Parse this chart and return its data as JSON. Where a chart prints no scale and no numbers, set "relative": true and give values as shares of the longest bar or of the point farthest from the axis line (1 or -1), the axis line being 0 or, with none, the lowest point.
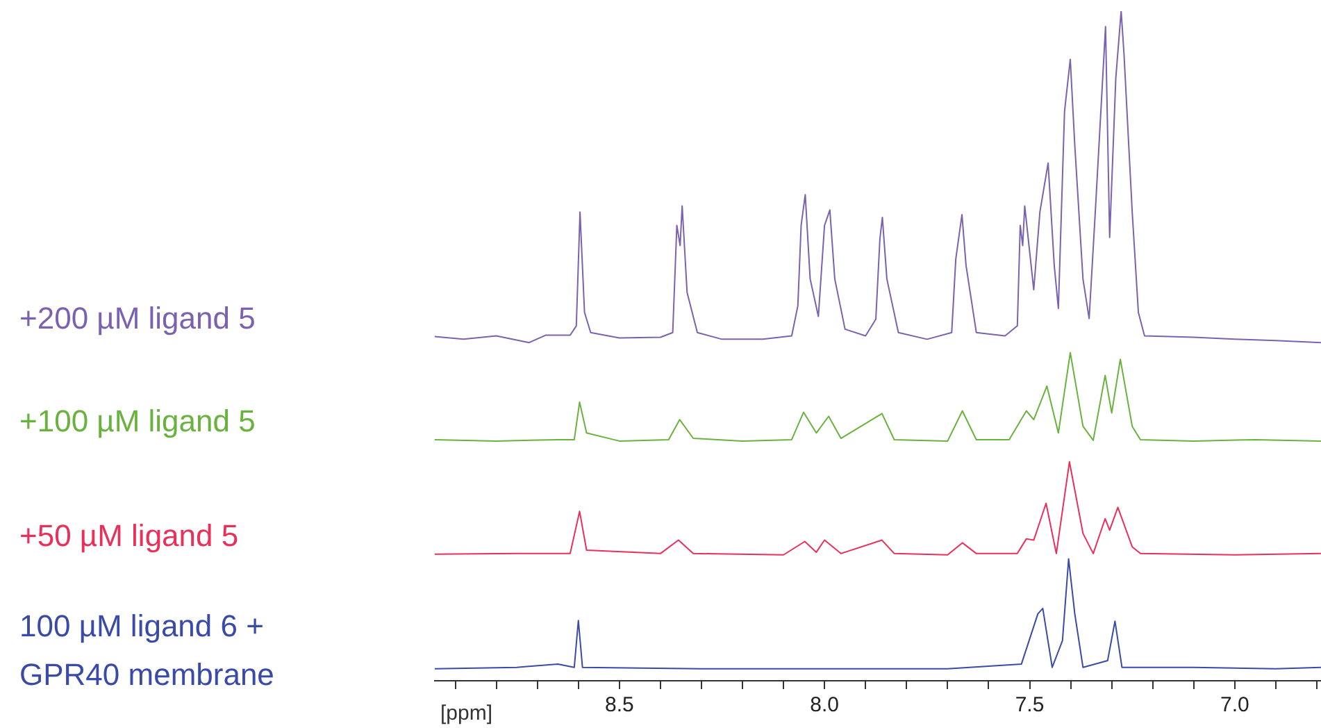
{
  "chart_data": {
    "type": "line",
    "relative": true,
    "xlabel": "[ppm]",
    "xlim": [
      8.95,
      6.79
    ],
    "tick_labels": "x",
    "xticks": [
      {
        "value": 8.9,
        "label": null
      },
      {
        "value": 8.8,
        "label": null
      },
      {
        "value": 8.7,
        "label": null
      },
      {
        "value": 8.6,
        "label": null
      },
      8.5,
      {
        "value": 8.4,
        "label": null
      },
      {
        "value": 8.3,
        "label": null
      },
      {
        "value": 8.2,
        "label": null
      },
      {
        "value": 8.1,
        "label": null
      },
      {
        "value": 8,
        "label": "8.0"
      },
      {
        "value": 7.9,
        "label": null
      },
      {
        "value": 7.8,
        "label": null
      },
      {
        "value": 7.7,
        "label": null
      },
      {
        "value": 7.6,
        "label": null
      },
      7.5,
      {
        "value": 7.4,
        "label": null
      },
      {
        "value": 7.3,
        "label": null
      },
      {
        "value": 7.2,
        "label": null
      },
      {
        "value": 7.1,
        "label": null
      },
      {
        "value": 7,
        "label": "7.0"
      },
      {
        "value": 6.9,
        "label": null
      },
      {
        "value": 6.8,
        "label": null
      }
    ],
    "series": [
      {
        "name": "+200 µM ligand 5",
        "color": "#7b62b0",
        "x": [
          8.95,
          8.88,
          8.8,
          8.72,
          8.68,
          8.62,
          8.605,
          8.596,
          8.585,
          8.57,
          8.5,
          8.4,
          8.37,
          8.36,
          8.352,
          8.347,
          8.335,
          8.31,
          8.25,
          8.15,
          8.08,
          8.065,
          8.057,
          8.047,
          8.035,
          8.015,
          8.0,
          7.987,
          7.975,
          7.95,
          7.9,
          7.875,
          7.865,
          7.859,
          7.848,
          7.82,
          7.75,
          7.69,
          7.68,
          7.665,
          7.655,
          7.63,
          7.56,
          7.53,
          7.523,
          7.517,
          7.512,
          7.49,
          7.475,
          7.455,
          7.44,
          7.43,
          7.415,
          7.401,
          7.39,
          7.37,
          7.355,
          7.34,
          7.315,
          7.305,
          7.29,
          7.277,
          7.27,
          7.25,
          7.235,
          7.22,
          7.1,
          7.0,
          6.9,
          6.79
        ],
        "values": [
          0.514,
          0.51,
          0.515,
          0.505,
          0.516,
          0.516,
          0.53,
          0.7,
          0.55,
          0.52,
          0.512,
          0.513,
          0.52,
          0.68,
          0.65,
          0.709,
          0.58,
          0.52,
          0.51,
          0.51,
          0.515,
          0.56,
          0.68,
          0.726,
          0.6,
          0.544,
          0.68,
          0.703,
          0.6,
          0.525,
          0.515,
          0.54,
          0.66,
          0.692,
          0.6,
          0.52,
          0.51,
          0.52,
          0.63,
          0.696,
          0.62,
          0.52,
          0.515,
          0.53,
          0.68,
          0.65,
          0.709,
          0.584,
          0.7,
          0.773,
          0.62,
          0.556,
          0.85,
          0.928,
          0.8,
          0.6,
          0.541,
          0.7,
          0.977,
          0.662,
          0.9,
          1.0,
          0.936,
          0.7,
          0.55,
          0.515,
          0.513,
          0.51,
          0.508,
          0.505
        ]
      },
      {
        "name": "+100 µM ligand 5",
        "color": "#6ab23e",
        "x": [
          8.95,
          8.8,
          8.65,
          8.61,
          8.597,
          8.58,
          8.5,
          8.38,
          8.353,
          8.32,
          8.2,
          8.08,
          8.051,
          8.02,
          7.99,
          7.96,
          7.86,
          7.83,
          7.7,
          7.664,
          7.63,
          7.55,
          7.508,
          7.49,
          7.458,
          7.43,
          7.401,
          7.37,
          7.345,
          7.316,
          7.3,
          7.279,
          7.25,
          7.23,
          7.1,
          6.95,
          6.79
        ],
        "values": [
          0.36,
          0.358,
          0.36,
          0.36,
          0.416,
          0.37,
          0.358,
          0.36,
          0.39,
          0.362,
          0.358,
          0.36,
          0.401,
          0.37,
          0.395,
          0.362,
          0.399,
          0.36,
          0.358,
          0.403,
          0.36,
          0.36,
          0.403,
          0.39,
          0.44,
          0.37,
          0.49,
          0.38,
          0.359,
          0.456,
          0.4,
          0.48,
          0.38,
          0.36,
          0.358,
          0.36,
          0.358
        ]
      },
      {
        "name": "+50 µM ligand 5",
        "color": "#e8305a",
        "x": [
          8.95,
          8.75,
          8.62,
          8.597,
          8.58,
          8.4,
          8.356,
          8.32,
          8.1,
          8.048,
          8.02,
          8.0,
          7.96,
          7.86,
          7.83,
          7.7,
          7.664,
          7.63,
          7.53,
          7.508,
          7.49,
          7.46,
          7.435,
          7.403,
          7.37,
          7.345,
          7.316,
          7.305,
          7.285,
          7.25,
          7.23,
          7.0,
          6.79
        ],
        "values": [
          0.189,
          0.19,
          0.19,
          0.253,
          0.195,
          0.19,
          0.21,
          0.19,
          0.188,
          0.208,
          0.192,
          0.21,
          0.19,
          0.21,
          0.19,
          0.188,
          0.206,
          0.19,
          0.19,
          0.212,
          0.21,
          0.265,
          0.19,
          0.327,
          0.22,
          0.19,
          0.242,
          0.225,
          0.259,
          0.2,
          0.19,
          0.188,
          0.19
        ]
      },
      {
        "name": "100 µM ligand 6 + GPR40 membrane",
        "color": "#3a4aa8",
        "x": [
          8.95,
          8.75,
          8.65,
          8.61,
          8.6,
          8.59,
          8.3,
          8.0,
          7.7,
          7.52,
          7.48,
          7.468,
          7.445,
          7.42,
          7.405,
          7.39,
          7.37,
          7.31,
          7.292,
          7.275,
          7.1,
          6.9,
          6.79
        ],
        "values": [
          0.018,
          0.02,
          0.025,
          0.02,
          0.09,
          0.02,
          0.018,
          0.018,
          0.018,
          0.025,
          0.1,
          0.108,
          0.02,
          0.06,
          0.182,
          0.1,
          0.02,
          0.03,
          0.089,
          0.02,
          0.02,
          0.018,
          0.02
        ]
      }
    ]
  }
}
